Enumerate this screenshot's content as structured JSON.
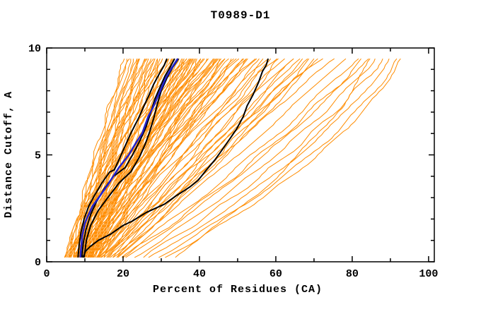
{
  "window": {
    "background": "#ffffff"
  },
  "chart_data": {
    "type": "line",
    "title": "T0989-D1",
    "xlabel": "Percent of Residues (CA)",
    "ylabel": "Distance Cutoff, A",
    "xlim": [
      0,
      101.5
    ],
    "ylim": [
      0,
      10
    ],
    "x_major_ticks": [
      0,
      20,
      40,
      60,
      80,
      100
    ],
    "x_minor_ticks": [
      10,
      30,
      50,
      70,
      90
    ],
    "y_major_ticks": [
      0,
      5,
      10
    ],
    "y_minor_ticks": [
      1,
      2,
      3,
      4,
      6,
      7,
      8,
      9
    ],
    "grid": false,
    "legend": "none",
    "curve_y_bottom": 0.2,
    "curve_y_top": 9.5,
    "colors": {
      "ensemble": "#ff8c00",
      "highlight_black": "#000000",
      "highlight_blue": "#2222cc",
      "axis": "#000000",
      "background": "#ffffff"
    },
    "highlight_series": [
      {
        "name": "model-black-1",
        "color_key": "highlight_black",
        "width": 2,
        "points": [
          [
            8.2,
            0.2
          ],
          [
            8.5,
            0.8
          ],
          [
            9,
            1.4
          ],
          [
            9.8,
            2
          ],
          [
            11,
            2.6
          ],
          [
            12.5,
            3.1
          ],
          [
            14.5,
            3.7
          ],
          [
            16.5,
            4.2
          ],
          [
            17.7,
            4.3
          ],
          [
            19,
            4.8
          ],
          [
            20.5,
            5.4
          ],
          [
            22,
            6
          ],
          [
            24,
            6.7
          ],
          [
            25.5,
            7.3
          ],
          [
            26.8,
            7.8
          ],
          [
            28,
            8.3
          ],
          [
            29.5,
            8.8
          ],
          [
            30.8,
            9.2
          ],
          [
            31.5,
            9.5
          ]
        ]
      },
      {
        "name": "model-black-2",
        "color_key": "highlight_black",
        "width": 2,
        "points": [
          [
            9.2,
            0.2
          ],
          [
            9.6,
            0.9
          ],
          [
            10.3,
            1.5
          ],
          [
            11.5,
            2.2
          ],
          [
            13,
            2.8
          ],
          [
            15,
            3.4
          ],
          [
            17.5,
            4
          ],
          [
            20.5,
            4.4
          ],
          [
            22.5,
            5
          ],
          [
            24.5,
            5.7
          ],
          [
            26,
            6.3
          ],
          [
            27.3,
            7
          ],
          [
            28.3,
            7.6
          ],
          [
            29.5,
            8.1
          ],
          [
            31,
            8.7
          ],
          [
            32.3,
            9.1
          ],
          [
            33.5,
            9.5
          ]
        ]
      },
      {
        "name": "model-black-3",
        "color_key": "highlight_black",
        "width": 2,
        "points": [
          [
            9.8,
            0.2
          ],
          [
            10.4,
            1
          ],
          [
            11.5,
            1.7
          ],
          [
            13.5,
            2.4
          ],
          [
            16,
            3
          ],
          [
            19,
            3.7
          ],
          [
            22,
            4.2
          ],
          [
            24.3,
            4.9
          ],
          [
            25.8,
            5.5
          ],
          [
            27,
            6.1
          ],
          [
            28,
            6.7
          ],
          [
            29,
            7.4
          ],
          [
            30,
            8
          ],
          [
            31.5,
            8.6
          ],
          [
            33,
            9.1
          ],
          [
            34.5,
            9.5
          ]
        ]
      },
      {
        "name": "model-black-right",
        "color_key": "highlight_black",
        "width": 2,
        "points": [
          [
            9.5,
            0.2
          ],
          [
            10.2,
            0.5
          ],
          [
            11.3,
            0.7
          ],
          [
            13.5,
            1
          ],
          [
            16.8,
            1.3
          ],
          [
            20,
            1.7
          ],
          [
            22.4,
            1.9
          ],
          [
            26,
            2.3
          ],
          [
            30.9,
            2.7
          ],
          [
            34,
            3.1
          ],
          [
            37.5,
            3.5
          ],
          [
            39.6,
            3.8
          ],
          [
            41.4,
            4.2
          ],
          [
            44.2,
            4.8
          ],
          [
            47,
            5.5
          ],
          [
            49.7,
            6.2
          ],
          [
            51.5,
            6.8
          ],
          [
            52.5,
            7.3
          ],
          [
            54,
            7.8
          ],
          [
            55.5,
            8.4
          ],
          [
            56.5,
            8.9
          ],
          [
            57.5,
            9.2
          ],
          [
            58,
            9.5
          ]
        ]
      },
      {
        "name": "model-blue",
        "color_key": "highlight_blue",
        "width": 2.5,
        "points": [
          [
            8.8,
            0.2
          ],
          [
            9,
            0.6
          ],
          [
            9.3,
            1.2
          ],
          [
            10,
            1.8
          ],
          [
            10.7,
            2.1
          ],
          [
            12,
            2.6
          ],
          [
            14,
            3.1
          ],
          [
            16,
            3.6
          ],
          [
            18.9,
            4.4
          ],
          [
            21.5,
            5
          ],
          [
            23.5,
            5.6
          ],
          [
            25,
            6
          ],
          [
            26.6,
            6.8
          ],
          [
            27.8,
            7.2
          ],
          [
            29,
            7.7
          ],
          [
            30,
            8.1
          ],
          [
            31.2,
            8.6
          ],
          [
            32.5,
            9
          ],
          [
            33.6,
            9.3
          ],
          [
            34.3,
            9.5
          ]
        ]
      }
    ],
    "ensemble_series": {
      "description": "Orange server-model curves; each entry is [x_at_y0.2, x_at_y5, x_at_y9.5] in percent of residues",
      "count": 102,
      "anchors_y": [
        0.2,
        5,
        9.5
      ],
      "curves": [
        [
          4.6,
          14,
          22
        ],
        [
          5,
          13,
          21
        ],
        [
          5.2,
          15.5,
          24
        ],
        [
          5.5,
          14,
          23
        ],
        [
          5.8,
          16,
          26
        ],
        [
          6,
          15,
          25
        ],
        [
          6.2,
          17,
          27
        ],
        [
          6.5,
          15.5,
          24.5
        ],
        [
          6.8,
          18,
          28
        ],
        [
          7,
          16,
          26
        ],
        [
          7.2,
          18.5,
          30
        ],
        [
          7.5,
          17,
          27
        ],
        [
          7.8,
          19,
          31
        ],
        [
          8,
          17.5,
          28
        ],
        [
          8.2,
          20,
          32
        ],
        [
          8.5,
          18,
          29
        ],
        [
          8.8,
          20.5,
          33
        ],
        [
          9,
          19,
          30
        ],
        [
          9.2,
          21,
          34
        ],
        [
          9.5,
          19.5,
          31
        ],
        [
          9.8,
          22,
          35
        ],
        [
          10,
          20,
          32
        ],
        [
          10.2,
          22.5,
          36
        ],
        [
          10.5,
          21,
          33
        ],
        [
          10.8,
          23,
          37
        ],
        [
          11,
          21.5,
          34
        ],
        [
          11.2,
          24,
          38
        ],
        [
          11.5,
          22,
          35
        ],
        [
          11.8,
          24.5,
          39
        ],
        [
          12,
          23,
          36
        ],
        [
          12.2,
          25,
          40
        ],
        [
          12.5,
          23.5,
          37
        ],
        [
          12.8,
          26,
          41
        ],
        [
          13,
          24,
          38
        ],
        [
          5.4,
          12.5,
          20.5
        ],
        [
          6.1,
          13.5,
          21.5
        ],
        [
          7.1,
          14.5,
          23.5
        ],
        [
          8.4,
          16.5,
          25.5
        ],
        [
          6.3,
          19,
          36
        ],
        [
          7.4,
          21,
          38
        ],
        [
          8.1,
          22,
          40
        ],
        [
          8.9,
          23,
          42
        ],
        [
          9.4,
          24,
          44
        ],
        [
          10.1,
          25,
          45
        ],
        [
          10.9,
          26,
          46
        ],
        [
          11.4,
          27,
          48
        ],
        [
          12.1,
          28,
          47
        ],
        [
          12.9,
          29,
          49
        ],
        [
          13.4,
          28,
          45
        ],
        [
          14,
          30,
          50
        ],
        [
          14.6,
          31,
          52
        ],
        [
          15.2,
          32,
          54
        ],
        [
          9.9,
          26,
          43
        ],
        [
          11.1,
          28,
          44
        ],
        [
          13.8,
          31,
          51
        ],
        [
          8.6,
          24,
          41
        ],
        [
          7.9,
          23,
          39
        ],
        [
          12.4,
          30,
          46
        ],
        [
          7.6,
          24,
          45
        ],
        [
          8.3,
          27,
          50
        ],
        [
          9.1,
          29,
          52
        ],
        [
          10.4,
          31,
          55
        ],
        [
          11.6,
          33,
          58
        ],
        [
          12.6,
          35,
          60
        ],
        [
          13.6,
          37,
          62
        ],
        [
          14.8,
          39,
          64
        ],
        [
          15.6,
          41,
          66
        ],
        [
          16.4,
          43,
          68
        ],
        [
          17.2,
          45,
          70
        ],
        [
          18.2,
          44,
          67
        ],
        [
          19,
          46,
          69
        ],
        [
          10.7,
          32,
          53
        ],
        [
          12.2,
          36,
          57
        ],
        [
          14.2,
          40,
          61
        ],
        [
          16.8,
          42,
          65
        ],
        [
          18.6,
          47,
          71
        ],
        [
          13.2,
          42,
          72
        ],
        [
          15,
          46,
          75
        ],
        [
          17,
          50,
          78
        ],
        [
          19.4,
          54,
          81
        ],
        [
          21,
          57,
          84
        ],
        [
          23,
          60,
          86
        ],
        [
          25,
          63,
          88
        ],
        [
          27,
          66,
          90
        ],
        [
          29,
          69,
          92
        ],
        [
          20,
          56,
          83
        ],
        [
          31,
          71,
          93
        ],
        [
          33,
          66,
          85
        ],
        [
          6.6,
          16.5,
          28.5
        ],
        [
          7.3,
          19.5,
          33
        ],
        [
          8.7,
          21.5,
          37
        ],
        [
          9.6,
          23.5,
          41
        ],
        [
          10.3,
          24.5,
          42
        ],
        [
          11.3,
          25.5,
          43
        ],
        [
          5.9,
          14.5,
          24
        ],
        [
          6.9,
          17.5,
          29
        ],
        [
          9.3,
          22.5,
          38
        ],
        [
          10.6,
          27,
          47
        ],
        [
          12.7,
          31,
          49
        ],
        [
          13.9,
          33,
          53
        ],
        [
          15.8,
          36,
          56
        ],
        [
          16.2,
          38,
          59
        ]
      ]
    }
  }
}
